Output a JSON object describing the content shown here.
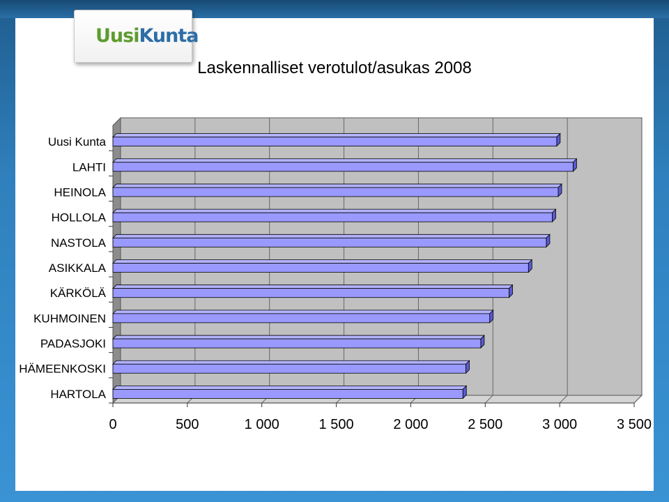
{
  "logo": {
    "part1": "Uusi",
    "part2": "Kunta"
  },
  "chart_data": {
    "type": "bar",
    "orientation": "horizontal",
    "style": "3d",
    "title": "Laskennalliset verotulot/asukas 2008",
    "categories": [
      "Uusi Kunta",
      "LAHTI",
      "HEINOLA",
      "HOLLOLA",
      "NASTOLA",
      "ASIKKALA",
      "KÄRKÖLÄ",
      "KUHMOINEN",
      "PADASJOKI",
      "HÄMEENKOSKI",
      "HARTOLA"
    ],
    "values": [
      2980,
      3090,
      2990,
      2950,
      2910,
      2790,
      2660,
      2530,
      2470,
      2370,
      2350
    ],
    "xlim": [
      0,
      3500
    ],
    "xticks": [
      0,
      500,
      1000,
      1500,
      2000,
      2500,
      3000,
      3500
    ],
    "xtick_labels": [
      "0",
      "500",
      "1 000",
      "1 500",
      "2 000",
      "2 500",
      "3 000",
      "3 500"
    ],
    "grid": true,
    "legend": "none",
    "colors": {
      "bar": "#9999ff",
      "bar_dark": "#5a5ad0",
      "bar_top": "#b3b3ff",
      "wall": "#c0c0c0",
      "floor": "#d4d4d4"
    }
  }
}
